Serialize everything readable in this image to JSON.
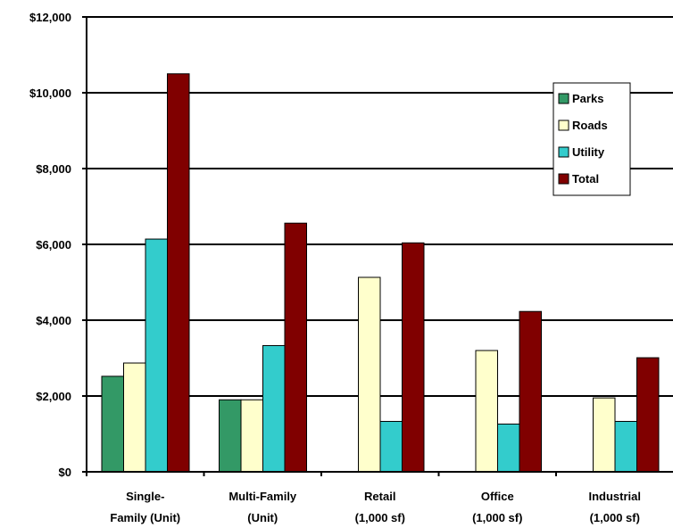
{
  "chart_data": {
    "type": "bar",
    "categories": [
      [
        "Single-",
        "Family (Unit)"
      ],
      [
        "Multi-Family",
        "(Unit)"
      ],
      [
        "Retail",
        "(1,000 sf)"
      ],
      [
        "Office",
        "(1,000 sf)"
      ],
      [
        "Industrial",
        "(1,000 sf)"
      ]
    ],
    "series": [
      {
        "name": "Parks",
        "color": "#339966",
        "values": [
          2520,
          1900,
          0,
          0,
          0
        ]
      },
      {
        "name": "Roads",
        "color": "#ffffcc",
        "values": [
          2870,
          1900,
          5130,
          3200,
          1950
        ]
      },
      {
        "name": "Utility",
        "color": "#33cccc",
        "values": [
          6140,
          3330,
          1330,
          1260,
          1330
        ]
      },
      {
        "name": "Total",
        "color": "#800000",
        "values": [
          10500,
          6560,
          6040,
          4230,
          3010
        ]
      }
    ],
    "ylim": [
      0,
      12000
    ],
    "y_ticks": [
      "$0",
      "$2,000",
      "$4,000",
      "$6,000",
      "$8,000",
      "$10,000",
      "$12,000"
    ],
    "y_tick_values": [
      0,
      2000,
      4000,
      6000,
      8000,
      10000,
      12000
    ],
    "grid": true,
    "legend_position": "top-right",
    "title": "",
    "xlabel": "",
    "ylabel": ""
  }
}
